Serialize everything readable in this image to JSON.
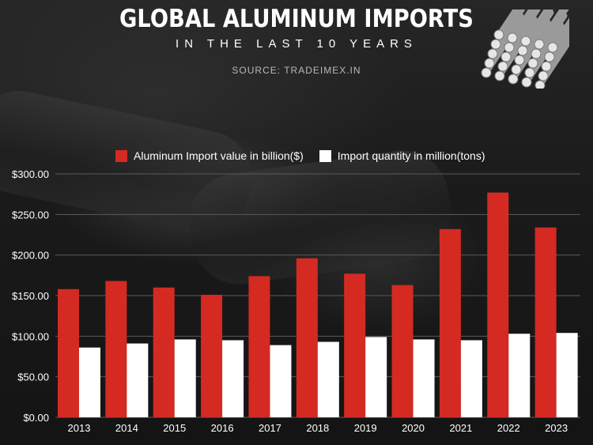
{
  "header": {
    "title": "GLOBAL ALUMINUM IMPORTS",
    "subtitle": "IN THE LAST 10 YEARS",
    "source": "SOURCE:  TRADEIMEX.IN"
  },
  "legend": {
    "value_label": "Aluminum Import value in billion($)",
    "quantity_label": "Import quantity in million(tons)"
  },
  "colors": {
    "value": "#d42a22",
    "quantity": "#ffffff",
    "grid": "#5a5a5a"
  },
  "decor": {
    "icon": "aluminum-rods-icon"
  },
  "chart_data": {
    "type": "bar",
    "categories": [
      "2013",
      "2014",
      "2015",
      "2016",
      "2017",
      "2018",
      "2019",
      "2020",
      "2021",
      "2022",
      "2023"
    ],
    "series": [
      {
        "name": "Aluminum Import value in billion($)",
        "values": [
          158,
          168,
          160,
          151,
          174,
          196,
          177,
          163,
          232,
          277,
          234
        ]
      },
      {
        "name": "Import quantity in million(tons)",
        "values": [
          86,
          91,
          96,
          95,
          89,
          93,
          99,
          96,
          95,
          103,
          104
        ]
      }
    ],
    "ylim": [
      0,
      300
    ],
    "yticks": [
      0,
      50,
      100,
      150,
      200,
      250,
      300
    ],
    "ytick_labels": [
      "$0.00",
      "$50.00",
      "$100.00",
      "$150.00",
      "$200.00",
      "$250.00",
      "$300.00"
    ],
    "grid": true,
    "legend_position": "top"
  }
}
